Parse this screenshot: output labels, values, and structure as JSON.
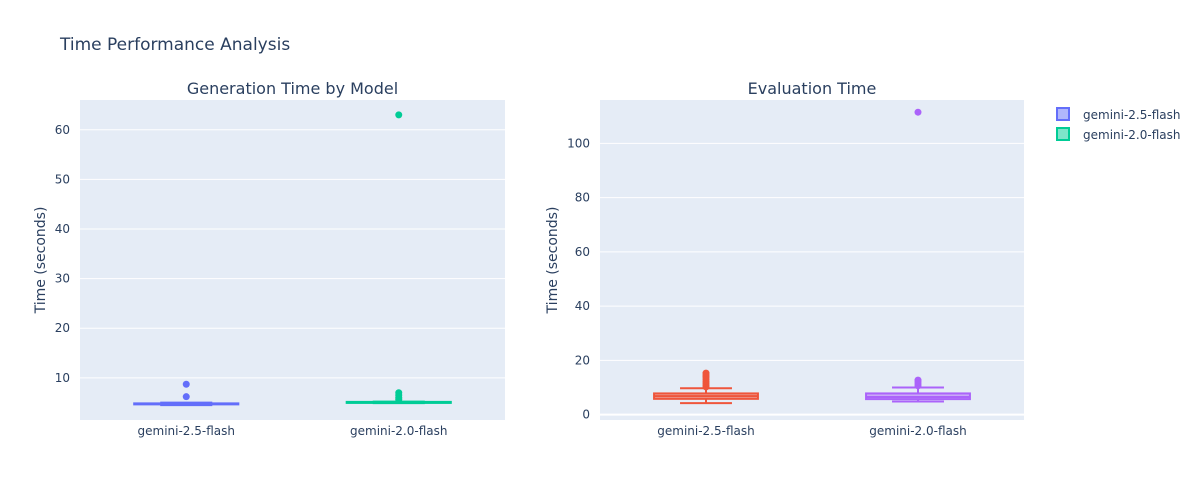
{
  "chart_data": {
    "title": "Time Performance Analysis",
    "legend": {
      "placement": "top-right",
      "items": [
        {
          "name": "gemini-2.5-flash",
          "color": "#636efa"
        },
        {
          "name": "gemini-2.0-flash",
          "color": "#00cc96"
        }
      ]
    },
    "subplots": [
      {
        "type": "box",
        "subtitle": "Generation Time by Model",
        "ylabel": "Time (seconds)",
        "ylim": [
          1.5,
          66
        ],
        "yticks": [
          10,
          20,
          30,
          40,
          50,
          60
        ],
        "categories": [
          "gemini-2.5-flash",
          "gemini-2.0-flash"
        ],
        "boxes": [
          {
            "category": "gemini-2.5-flash",
            "color": "#636efa",
            "min": 4.5,
            "q1": 4.65,
            "median": 4.75,
            "q3": 4.85,
            "max": 5.0,
            "outliers": [
              6.2,
              8.7
            ]
          },
          {
            "category": "gemini-2.0-flash",
            "color": "#00cc96",
            "min": 4.9,
            "q1": 4.95,
            "median": 5.0,
            "q3": 5.15,
            "max": 5.2,
            "outliers": [
              5.6,
              6.0,
              6.5,
              7.0,
              63.0
            ]
          }
        ]
      },
      {
        "type": "box",
        "subtitle": "Evaluation Time",
        "ylabel": "Time (seconds)",
        "ylim": [
          -2,
          116
        ],
        "yticks": [
          0,
          20,
          40,
          60,
          80,
          100
        ],
        "categories": [
          "gemini-2.5-flash",
          "gemini-2.0-flash"
        ],
        "boxes": [
          {
            "category": "gemini-2.5-flash",
            "color": "#ef553b",
            "min": 4.2,
            "q1": 5.8,
            "median": 6.8,
            "q3": 7.8,
            "max": 9.7,
            "outliers": [
              10.2,
              10.8,
              11.5,
              12.2,
              13.0,
              13.8,
              14.5,
              15.3
            ]
          },
          {
            "category": "gemini-2.0-flash",
            "color": "#ab63fa",
            "min": 4.8,
            "q1": 5.7,
            "median": 6.5,
            "q3": 7.8,
            "max": 10.0,
            "outliers": [
              10.6,
              11.3,
              12.0,
              12.7,
              111.5
            ]
          }
        ]
      }
    ]
  }
}
